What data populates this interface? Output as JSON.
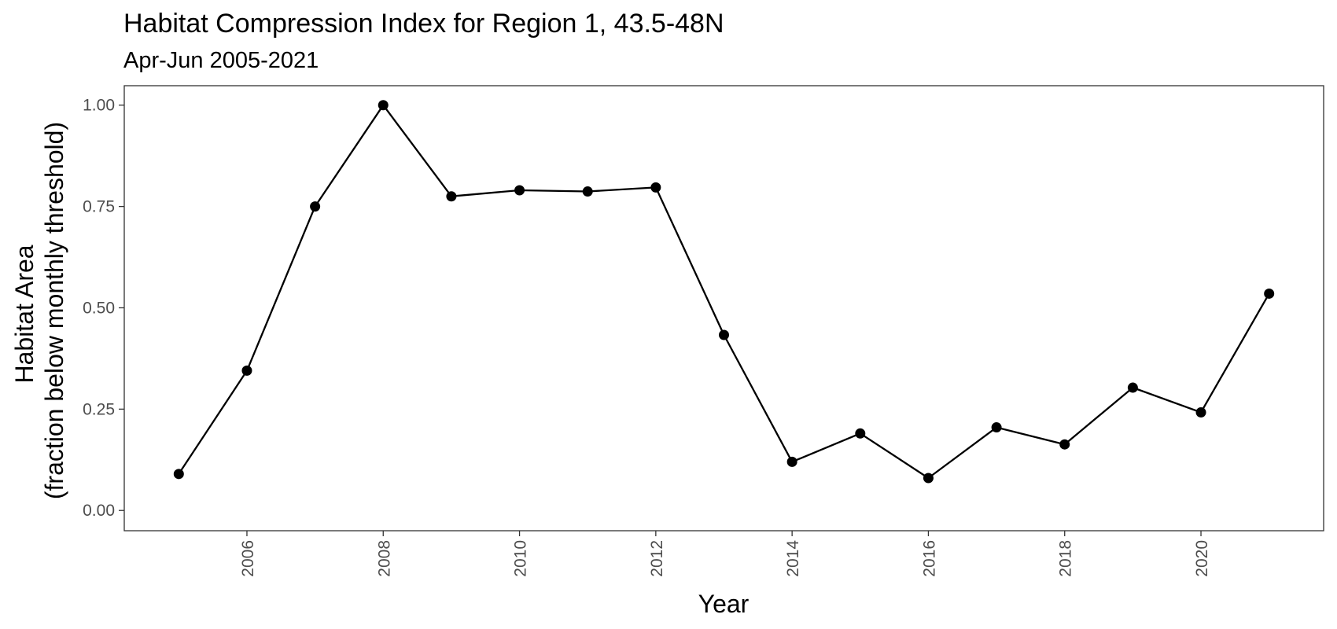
{
  "chart_data": {
    "type": "line",
    "title": "Habitat Compression Index for Region 1, 43.5-48N",
    "subtitle": "Apr-Jun 2005-2021",
    "xlabel": "Year",
    "ylabel_line1": "Habitat Area",
    "ylabel_line2": "(fraction below monthly threshold)",
    "x": [
      2005,
      2006,
      2007,
      2008,
      2009,
      2010,
      2011,
      2012,
      2013,
      2014,
      2015,
      2016,
      2017,
      2018,
      2019,
      2020,
      2021
    ],
    "values": [
      0.09,
      0.345,
      0.75,
      1.0,
      0.775,
      0.79,
      0.787,
      0.797,
      0.433,
      0.12,
      0.19,
      0.08,
      0.205,
      0.163,
      0.303,
      0.242,
      0.535
    ],
    "xlim": [
      2004.2,
      2021.8
    ],
    "ylim": [
      -0.05,
      1.048
    ],
    "x_ticks": [
      "2006",
      "2008",
      "2010",
      "2012",
      "2014",
      "2016",
      "2018",
      "2020"
    ],
    "y_ticks": [
      "0.00",
      "0.25",
      "0.50",
      "0.75",
      "1.00"
    ],
    "grid": false,
    "legend": "none",
    "line_color": "#000000",
    "point_color": "#000000",
    "panel_border_color": "#333333"
  }
}
